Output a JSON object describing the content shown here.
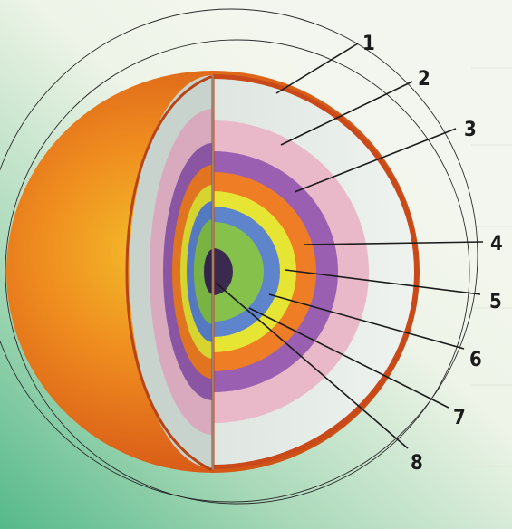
{
  "labels": {
    "l1": "1",
    "l2": "2",
    "l3": "3",
    "l4": "4",
    "l5": "5",
    "l6": "6",
    "l7": "7",
    "l8": "8"
  },
  "colors": {
    "background": "#f1f5ea",
    "background_bottom_left": "#5fbf8e",
    "outer_surface": "#d95a1a",
    "crust": "#dfe7e2",
    "layer_pink": "#e9b9c9",
    "layer_purple": "#9a5fb0",
    "layer_orange": "#ef7d25",
    "layer_yellow": "#e7e533",
    "layer_blue": "#5e84cc",
    "layer_green": "#86c14c",
    "core": "#3a2a4e"
  }
}
